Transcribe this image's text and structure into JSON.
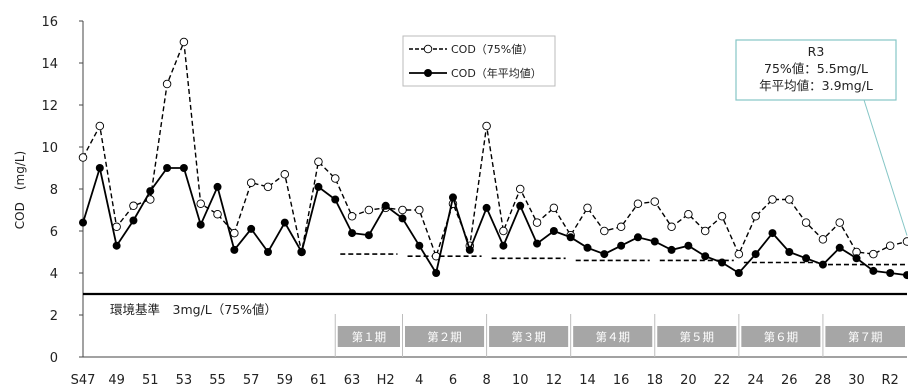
{
  "chart_data": {
    "type": "line",
    "xlabel": "",
    "ylabel": "COD　(mg/L)",
    "ylim": [
      0,
      16
    ],
    "yticks": [
      0,
      2,
      4,
      6,
      8,
      10,
      12,
      14,
      16
    ],
    "x": [
      "S47",
      "S48",
      "S49",
      "S50",
      "S51",
      "S52",
      "S53",
      "S54",
      "S55",
      "S56",
      "S57",
      "S58",
      "S59",
      "S60",
      "S61",
      "S62",
      "S63",
      "H1",
      "H2",
      "H3",
      "H4",
      "H5",
      "H6",
      "H7",
      "H8",
      "H9",
      "H10",
      "H11",
      "H12",
      "H13",
      "H14",
      "H15",
      "H16",
      "H17",
      "H18",
      "H19",
      "H20",
      "H21",
      "H22",
      "H23",
      "H24",
      "H25",
      "H26",
      "H27",
      "H28",
      "H29",
      "H30",
      "R1",
      "R2",
      "R3"
    ],
    "x_tick_labels": [
      "S47",
      "49",
      "51",
      "53",
      "55",
      "57",
      "59",
      "61",
      "63",
      "H2",
      "4",
      "6",
      "8",
      "10",
      "12",
      "14",
      "16",
      "18",
      "20",
      "22",
      "24",
      "26",
      "28",
      "30",
      "R2"
    ],
    "series": [
      {
        "name": "COD（75%値）",
        "style": "dashed-open-circle",
        "color": "#000000",
        "values": [
          9.5,
          11.0,
          6.2,
          7.2,
          7.5,
          13.0,
          15.0,
          7.3,
          6.8,
          5.9,
          8.3,
          8.1,
          8.7,
          5.0,
          9.3,
          8.5,
          6.7,
          7.0,
          7.1,
          7.0,
          7.0,
          4.8,
          7.3,
          5.3,
          11.0,
          6.0,
          8.0,
          6.4,
          7.1,
          5.8,
          7.1,
          6.0,
          6.2,
          7.3,
          7.4,
          6.2,
          6.8,
          6.0,
          6.7,
          4.9,
          6.7,
          7.5,
          7.5,
          6.4,
          5.6,
          6.4,
          5.0,
          4.9,
          5.3,
          5.5
        ]
      },
      {
        "name": "COD（年平均値）",
        "style": "solid-filled-circle",
        "color": "#000000",
        "values": [
          6.4,
          9.0,
          5.3,
          6.5,
          7.9,
          9.0,
          9.0,
          6.3,
          8.1,
          5.1,
          6.1,
          5.0,
          6.4,
          5.0,
          8.1,
          7.5,
          5.9,
          5.8,
          7.2,
          6.6,
          5.3,
          4.0,
          7.6,
          5.1,
          7.1,
          5.3,
          7.2,
          5.4,
          6.0,
          5.7,
          5.2,
          4.9,
          5.3,
          5.7,
          5.5,
          5.1,
          5.3,
          4.8,
          4.5,
          4.0,
          4.9,
          5.9,
          5.0,
          4.7,
          4.4,
          5.2,
          4.7,
          4.1,
          4.0,
          3.9
        ]
      }
    ],
    "environmental_standard": {
      "value": 3.0,
      "label": "環境基準　3mg/L（75%値）"
    },
    "periods": [
      {
        "label": "第１期",
        "target": 4.9
      },
      {
        "label": "第２期",
        "target": 4.8
      },
      {
        "label": "第３期",
        "target": 4.7
      },
      {
        "label": "第４期",
        "target": 4.6
      },
      {
        "label": "第５期",
        "target": 4.6
      },
      {
        "label": "第６期",
        "target": 4.5
      },
      {
        "label": "第７期",
        "target": 4.4
      }
    ],
    "callout": {
      "lines": [
        "R3",
        "75%値：5.5mg/L",
        "年平均値：3.9mg/L"
      ],
      "border_color": "#86c6c6"
    },
    "legend_position": "top-center",
    "grid": false,
    "period_band_color": "#a6a6a6"
  }
}
